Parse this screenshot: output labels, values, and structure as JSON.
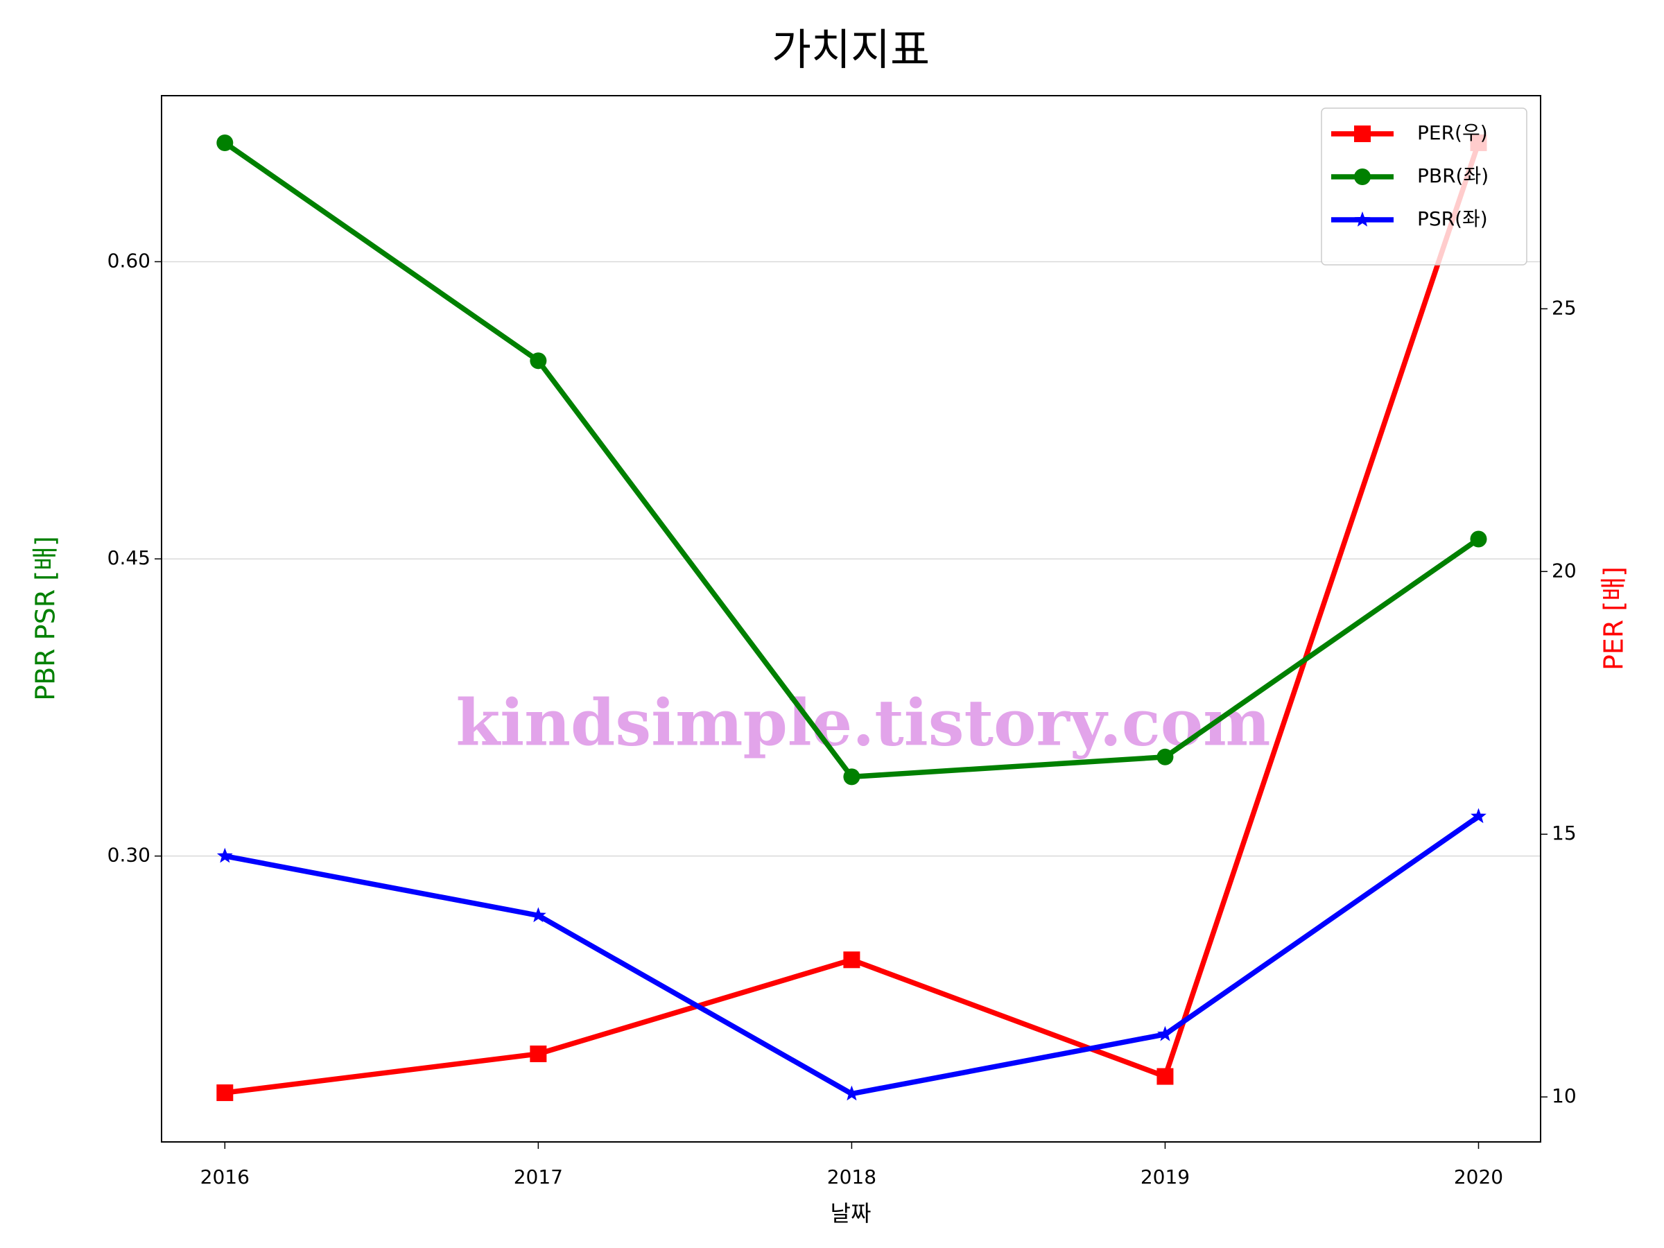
{
  "chart_data": {
    "type": "line",
    "title": "가치지표",
    "xlabel": "날짜",
    "ylabel": "PBR PSR [배]",
    "y2label": "PER [배]",
    "ylabel_color": "#008000",
    "y2label_color": "#ff0000",
    "watermark": "kindsimple.tistory.com",
    "x": [
      2016,
      2017,
      2018,
      2019,
      2020
    ],
    "xlim": [
      2015.798,
      2020.198
    ],
    "xticks": [
      2016,
      2017,
      2018,
      2019,
      2020
    ],
    "ylim": [
      0.1557,
      0.6838
    ],
    "yticks": [
      {
        "value": 0.3,
        "label": "0.30"
      },
      {
        "value": 0.45,
        "label": "0.45"
      },
      {
        "value": 0.6,
        "label": "0.60"
      }
    ],
    "y2lim": [
      9.144,
      29.056
    ],
    "y2ticks": [
      10,
      15,
      20,
      25
    ],
    "grid": true,
    "legend": "upper right",
    "series": [
      {
        "name": "PER(우)",
        "color": "#ff0000",
        "marker": "square",
        "axis": "y2",
        "values": [
          10.08,
          10.82,
          12.61,
          10.39,
          28.16
        ]
      },
      {
        "name": "PBR(좌)",
        "color": "#008000",
        "marker": "circle",
        "values": [
          0.66,
          0.55,
          0.34,
          0.35,
          0.46
        ]
      },
      {
        "name": "PSR(좌)",
        "color": "#0000ff",
        "marker": "star",
        "values": [
          0.3,
          0.27,
          0.18,
          0.21,
          0.32
        ]
      }
    ]
  }
}
